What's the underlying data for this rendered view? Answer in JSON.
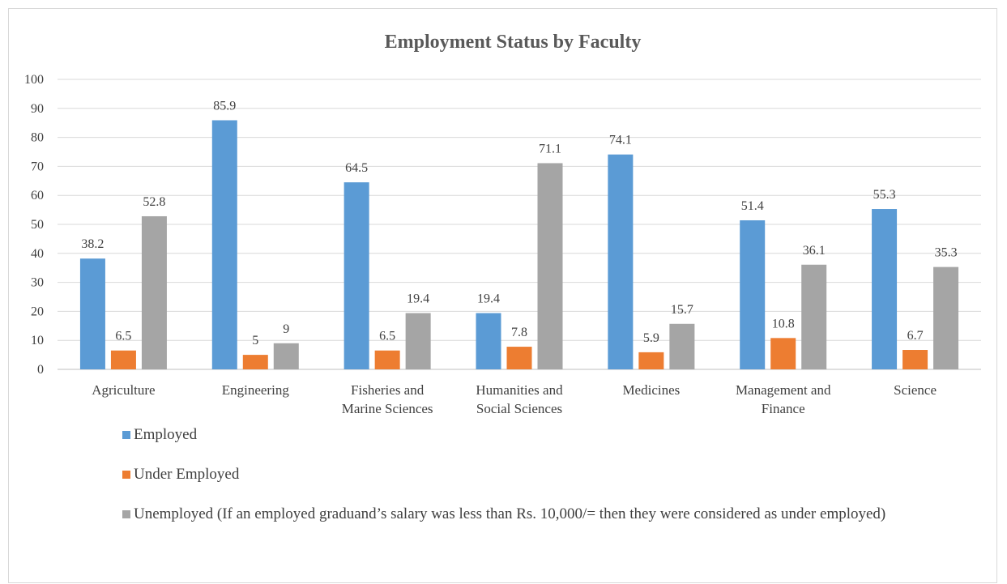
{
  "chart_data": {
    "type": "bar",
    "title": "Employment Status by Faculty",
    "xlabel": "",
    "ylabel": "",
    "ylim": [
      0,
      100
    ],
    "yticks": [
      0,
      10,
      20,
      30,
      40,
      50,
      60,
      70,
      80,
      90,
      100
    ],
    "grid": true,
    "legend_position": "bottom-left",
    "categories": [
      [
        "Agriculture"
      ],
      [
        "Engineering"
      ],
      [
        "Fisheries and",
        "Marine Sciences"
      ],
      [
        "Humanities and",
        "Social Sciences"
      ],
      [
        "Medicines"
      ],
      [
        "Management and",
        "Finance"
      ],
      [
        "Science"
      ]
    ],
    "series": [
      {
        "name": "Employed",
        "color": "#5b9bd5",
        "values": [
          38.2,
          85.9,
          64.5,
          19.4,
          74.1,
          51.4,
          55.3
        ]
      },
      {
        "name": "Under Employed",
        "color": "#ed7d31",
        "values": [
          6.5,
          5,
          6.5,
          7.8,
          5.9,
          10.8,
          6.7
        ]
      },
      {
        "name": "Unemployed (If an employed graduand’s salary was less than Rs. 10,000/= then they were considered as under employed)",
        "color": "#a5a5a5",
        "values": [
          52.8,
          9,
          19.4,
          71.1,
          15.7,
          36.1,
          35.3
        ]
      }
    ]
  }
}
